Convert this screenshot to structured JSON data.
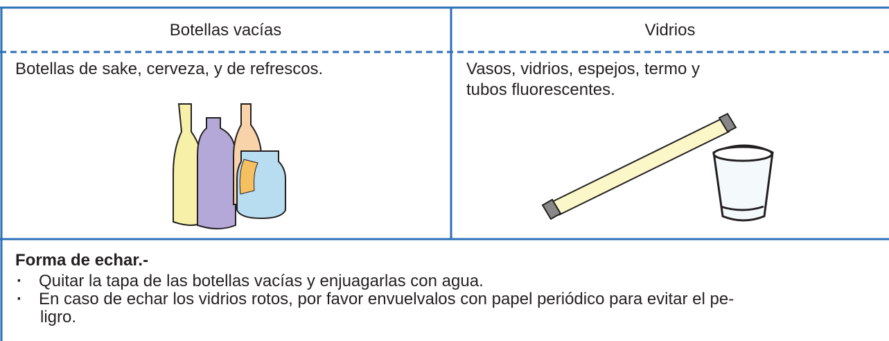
{
  "table": {
    "headers": [
      "Botellas vacías",
      "Vidrios"
    ],
    "cells": [
      {
        "lines": [
          "Botellas de sake, cerveza, y de refrescos."
        ]
      },
      {
        "lines": [
          "Vasos, vidrios, espejos, termo y",
          "tubos fluorescentes."
        ]
      }
    ]
  },
  "instructions": {
    "title": "Forma de echar.-",
    "items": [
      {
        "lines": [
          "Quitar la tapa de las botellas vacías y enjuagarlas con agua."
        ]
      },
      {
        "lines": [
          "En caso de echar los vidrios rotos, por favor envuelvalos con papel periódico para evitar el pe-",
          "ligro."
        ]
      }
    ]
  }
}
